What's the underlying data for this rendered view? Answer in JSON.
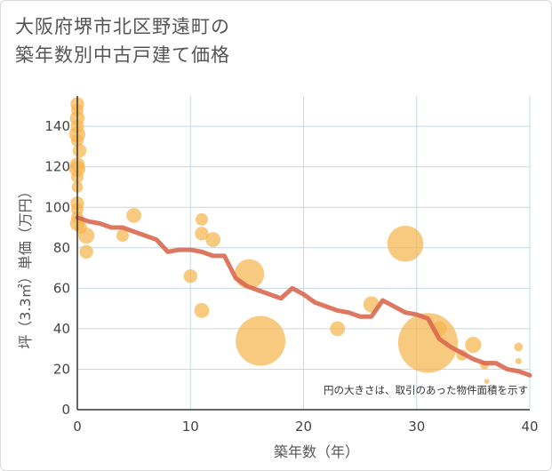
{
  "header": {
    "title_line1": "大阪府堺市北区野遠町の",
    "title_line2": "築年数別中古戸建て価格"
  },
  "colors": {
    "bubble": "#f5b54f",
    "line": "#d9684f",
    "grid": "#c7d7e3",
    "axis": "#333333"
  },
  "chart_data": {
    "type": "scatter",
    "title": "大阪府堺市北区野遠町の築年数別中古戸建て価格",
    "xlabel": "築年数（年）",
    "ylabel": "坪（3.3㎡）単価（万円）",
    "xlim": [
      0,
      40
    ],
    "ylim": [
      0,
      155
    ],
    "xticks": [
      "0",
      "10",
      "20",
      "30",
      "40"
    ],
    "yticks": [
      "0",
      "20",
      "40",
      "60",
      "80",
      "100",
      "120",
      "140"
    ],
    "note": "円の大きさは、取引のあった物件面積を示す",
    "bubbles": [
      {
        "x": 0,
        "y": 151,
        "s": 1.1
      },
      {
        "x": 0,
        "y": 148,
        "s": 1
      },
      {
        "x": 0,
        "y": 144,
        "s": 1.2
      },
      {
        "x": 0,
        "y": 140,
        "s": 1.1
      },
      {
        "x": 0,
        "y": 136,
        "s": 1.3
      },
      {
        "x": 0,
        "y": 133,
        "s": 1
      },
      {
        "x": 0.2,
        "y": 128,
        "s": 1.1
      },
      {
        "x": 0,
        "y": 121,
        "s": 1.2
      },
      {
        "x": 0,
        "y": 119,
        "s": 1.3
      },
      {
        "x": 0,
        "y": 115,
        "s": 1
      },
      {
        "x": 0,
        "y": 110,
        "s": 0.9
      },
      {
        "x": 0,
        "y": 102,
        "s": 1.1
      },
      {
        "x": 0,
        "y": 99,
        "s": 1
      },
      {
        "x": 0,
        "y": 95,
        "s": 1
      },
      {
        "x": 0,
        "y": 92,
        "s": 1.2
      },
      {
        "x": 0.3,
        "y": 90,
        "s": 1
      },
      {
        "x": 0.8,
        "y": 86,
        "s": 1.3
      },
      {
        "x": 0.8,
        "y": 78,
        "s": 1.1
      },
      {
        "x": 4,
        "y": 86,
        "s": 1
      },
      {
        "x": 5,
        "y": 96,
        "s": 1.2
      },
      {
        "x": 10,
        "y": 66,
        "s": 1.1
      },
      {
        "x": 11,
        "y": 94,
        "s": 1
      },
      {
        "x": 11,
        "y": 87,
        "s": 1.1
      },
      {
        "x": 12,
        "y": 84,
        "s": 1.2
      },
      {
        "x": 11,
        "y": 49,
        "s": 1.2
      },
      {
        "x": 15.2,
        "y": 67,
        "s": 2.4
      },
      {
        "x": 16.2,
        "y": 34,
        "s": 4
      },
      {
        "x": 23,
        "y": 40,
        "s": 1.2
      },
      {
        "x": 26,
        "y": 52,
        "s": 1.3
      },
      {
        "x": 29,
        "y": 82,
        "s": 2.9
      },
      {
        "x": 31,
        "y": 33,
        "s": 4.8
      },
      {
        "x": 32,
        "y": 40,
        "s": 1.2
      },
      {
        "x": 34,
        "y": 27,
        "s": 0.9
      },
      {
        "x": 35,
        "y": 32,
        "s": 1.3
      },
      {
        "x": 36,
        "y": 22,
        "s": 0.7
      },
      {
        "x": 36.2,
        "y": 14,
        "s": 0.4
      },
      {
        "x": 39,
        "y": 31,
        "s": 0.7
      },
      {
        "x": 39,
        "y": 24,
        "s": 0.5
      }
    ],
    "trend": {
      "x": [
        0,
        1,
        2,
        3,
        4,
        5,
        6,
        7,
        8,
        9,
        10,
        11,
        12,
        13,
        14,
        15,
        16,
        17,
        18,
        19,
        20,
        21,
        22,
        23,
        24,
        25,
        26,
        27,
        28,
        29,
        30,
        31,
        32,
        33,
        34,
        35,
        36,
        37,
        38,
        39,
        40
      ],
      "y": [
        95,
        93,
        92,
        90,
        90,
        88,
        86,
        84,
        78,
        79,
        79,
        78,
        76,
        76,
        65,
        61,
        59,
        57,
        55,
        60,
        57,
        53,
        51,
        49,
        48,
        46,
        46,
        54,
        51,
        48,
        47,
        45,
        35,
        31,
        28,
        25,
        23,
        23,
        20,
        19,
        17
      ]
    }
  }
}
